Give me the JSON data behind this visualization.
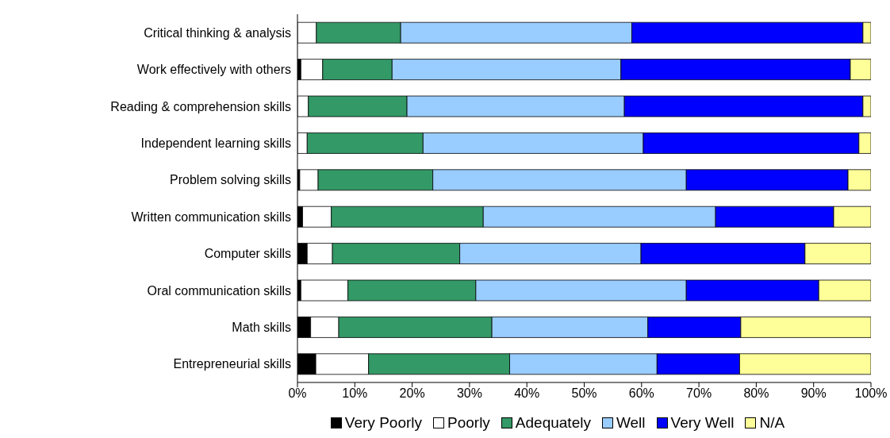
{
  "chart_data": {
    "type": "bar",
    "orientation": "horizontal",
    "stacked": true,
    "categories": [
      "Critical thinking & analysis",
      "Work effectively with others",
      "Reading & comprehension skills",
      "Independent learning skills",
      "Problem solving skills",
      "Written communication skills",
      "Computer skills",
      "Oral communication skills",
      "Math skills",
      "Entrepreneurial skills"
    ],
    "series": [
      {
        "name": "Very Poorly",
        "color": "#000000",
        "values": [
          0,
          0.6,
          0,
          0,
          0.4,
          0.9,
          1.7,
          0.6,
          2.3,
          3.2
        ]
      },
      {
        "name": "Poorly",
        "color": "#ffffff",
        "values": [
          3.3,
          3.8,
          1.9,
          1.7,
          3.2,
          5.0,
          4.4,
          8.2,
          4.9,
          9.2
        ]
      },
      {
        "name": "Adequately",
        "color": "#339966",
        "values": [
          14.7,
          12.1,
          17.2,
          20.2,
          20.0,
          26.5,
          22.2,
          22.3,
          26.7,
          24.6
        ]
      },
      {
        "name": "Well",
        "color": "#99ccff",
        "values": [
          40.3,
          39.9,
          37.9,
          38.4,
          44.2,
          40.5,
          31.6,
          36.7,
          27.2,
          25.7
        ]
      },
      {
        "name": "Very Well",
        "color": "#0000ff",
        "values": [
          40.3,
          40.0,
          41.6,
          37.6,
          28.2,
          20.6,
          28.6,
          23.1,
          16.2,
          14.4
        ]
      },
      {
        "name": "N/A",
        "color": "#ffff99",
        "values": [
          1.4,
          3.6,
          1.4,
          2.1,
          4.0,
          6.5,
          11.5,
          9.1,
          22.7,
          22.9
        ]
      }
    ],
    "xlim": [
      0,
      100
    ],
    "xticks": [
      {
        "value": 0,
        "label": "0%"
      },
      {
        "value": 10,
        "label": "10%"
      },
      {
        "value": 20,
        "label": "20%"
      },
      {
        "value": 30,
        "label": "30%"
      },
      {
        "value": 40,
        "label": "40%"
      },
      {
        "value": 50,
        "label": "50%"
      },
      {
        "value": 60,
        "label": "60%"
      },
      {
        "value": 70,
        "label": "70%"
      },
      {
        "value": 80,
        "label": "80%"
      },
      {
        "value": 90,
        "label": "90%"
      },
      {
        "value": 100,
        "label": "100%"
      }
    ],
    "grid": false,
    "legend": "bottom"
  }
}
